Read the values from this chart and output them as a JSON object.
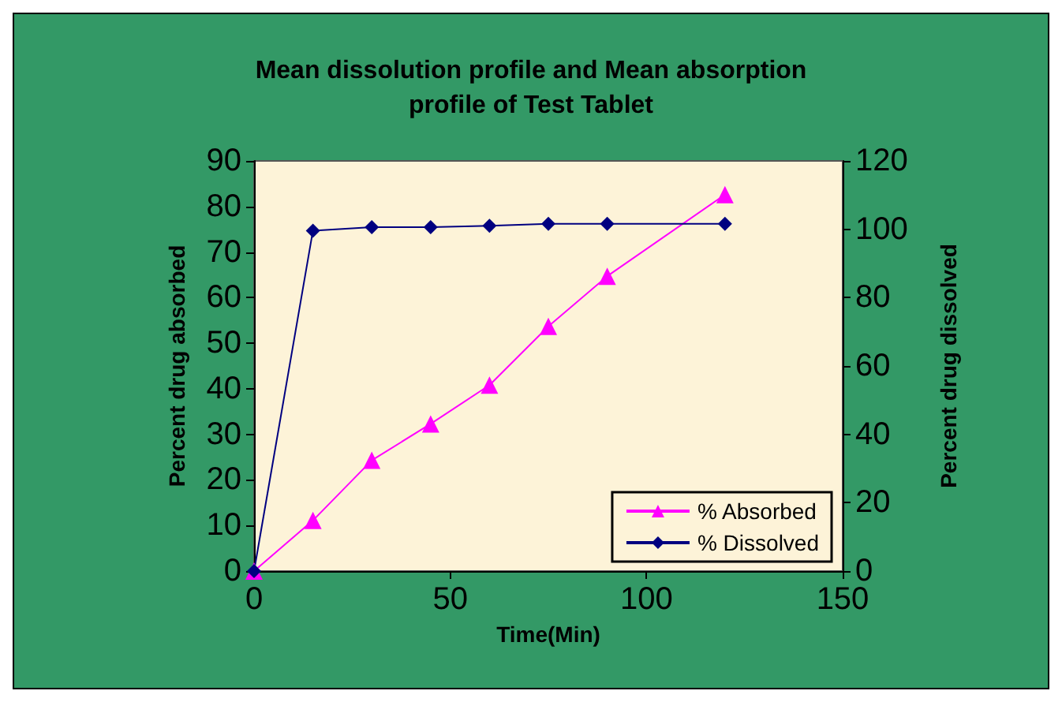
{
  "chart_data": {
    "type": "line",
    "title": "Mean dissolution profile and Mean absorption\nprofile of Test Tablet",
    "xlabel": "Time(Min)",
    "ylabel": "Percent drug absorbed",
    "y2label": "Percent drug dissolved",
    "x": [
      0,
      15,
      30,
      45,
      60,
      75,
      90,
      120
    ],
    "series": [
      {
        "name": "% Absorbed",
        "color": "#ff00ff",
        "marker": "triangle",
        "values": [
          0,
          11.1,
          24.3,
          32.3,
          40.8,
          53.7,
          64.7,
          82.6
        ]
      },
      {
        "name": "% Dissolved",
        "color": "#000080",
        "marker": "diamond",
        "axis": "y2",
        "values": [
          0,
          99.6,
          100.6,
          100.6,
          101,
          101.6,
          101.6,
          101.6
        ]
      }
    ],
    "xlim": [
      0,
      150
    ],
    "xticks": [
      0,
      50,
      100,
      150
    ],
    "ylim": [
      0,
      90
    ],
    "yticks": [
      0,
      10,
      20,
      30,
      40,
      50,
      60,
      70,
      80,
      90
    ],
    "y2lim": [
      0,
      120
    ],
    "y2ticks": [
      0,
      20,
      40,
      60,
      80,
      100,
      120
    ],
    "grid": false,
    "legend": "bottom right"
  }
}
